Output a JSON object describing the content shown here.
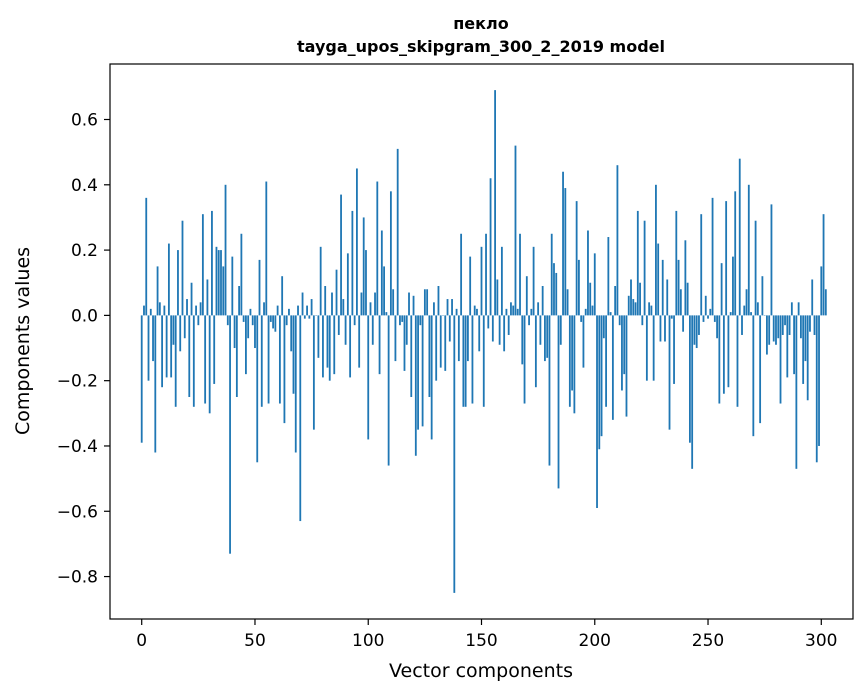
{
  "chart_data": {
    "type": "bar",
    "title": "пекло",
    "subtitle": "tayga_upos_skipgram_300_2_2019 model",
    "xlabel": "Vector components",
    "ylabel": "Components values",
    "xlim": [
      -14,
      314
    ],
    "ylim": [
      -0.93,
      0.77
    ],
    "xticks": [
      0,
      50,
      100,
      150,
      200,
      250,
      300
    ],
    "yticks": [
      -0.8,
      -0.6,
      -0.4,
      -0.2,
      0.0,
      0.2,
      0.4,
      0.6
    ],
    "ytick_labels": [
      "−0.8",
      "−0.6",
      "−0.4",
      "−0.2",
      "0.0",
      "0.2",
      "0.4",
      "0.6"
    ],
    "bar_color": "#1f77b4",
    "grid": false,
    "values": [
      -0.39,
      0.03,
      0.36,
      -0.2,
      0.02,
      -0.14,
      -0.42,
      0.15,
      0.04,
      -0.22,
      0.03,
      -0.19,
      0.22,
      -0.19,
      -0.09,
      -0.28,
      0.2,
      -0.11,
      0.29,
      -0.07,
      0.05,
      -0.25,
      0.1,
      -0.28,
      0.03,
      -0.03,
      0.04,
      0.31,
      -0.27,
      0.11,
      -0.3,
      0.32,
      -0.21,
      0.21,
      0.2,
      0.2,
      0.15,
      0.4,
      -0.03,
      -0.73,
      0.18,
      -0.1,
      -0.25,
      0.09,
      0.25,
      -0.02,
      -0.18,
      -0.07,
      0.02,
      -0.03,
      -0.1,
      -0.45,
      0.17,
      -0.28,
      0.04,
      0.41,
      -0.27,
      -0.02,
      -0.04,
      -0.05,
      0.03,
      -0.27,
      0.12,
      -0.33,
      -0.03,
      0.02,
      -0.11,
      -0.24,
      -0.42,
      0.03,
      -0.63,
      0.07,
      -0.01,
      0.03,
      -0.01,
      0.05,
      -0.35,
      0.0,
      -0.13,
      0.21,
      -0.19,
      0.09,
      -0.16,
      -0.2,
      0.07,
      -0.18,
      0.14,
      -0.06,
      0.37,
      0.05,
      -0.09,
      0.19,
      -0.19,
      0.32,
      -0.03,
      0.45,
      -0.16,
      0.07,
      0.3,
      0.2,
      -0.38,
      0.04,
      -0.09,
      0.07,
      0.41,
      -0.18,
      0.26,
      0.15,
      0.01,
      -0.46,
      0.38,
      0.08,
      -0.14,
      0.51,
      -0.03,
      -0.02,
      -0.17,
      -0.09,
      0.07,
      -0.25,
      0.06,
      -0.43,
      -0.35,
      -0.03,
      -0.34,
      0.08,
      0.08,
      -0.25,
      -0.38,
      0.04,
      -0.2,
      0.09,
      -0.16,
      0.0,
      -0.17,
      0.05,
      -0.08,
      0.05,
      -0.85,
      0.02,
      -0.14,
      0.25,
      -0.28,
      -0.28,
      -0.14,
      0.18,
      -0.27,
      0.03,
      0.02,
      -0.11,
      0.21,
      -0.28,
      0.25,
      -0.04,
      0.42,
      -0.08,
      0.69,
      0.11,
      -0.09,
      0.21,
      -0.11,
      0.02,
      -0.06,
      0.04,
      0.03,
      0.52,
      0.02,
      0.25,
      -0.15,
      -0.27,
      0.12,
      -0.03,
      0.02,
      0.21,
      -0.22,
      0.04,
      -0.09,
      0.09,
      -0.14,
      -0.13,
      -0.46,
      0.25,
      0.16,
      0.13,
      -0.53,
      -0.09,
      0.44,
      0.39,
      0.08,
      -0.28,
      -0.23,
      -0.3,
      0.35,
      0.17,
      -0.02,
      -0.16,
      0.02,
      0.26,
      0.1,
      0.03,
      0.19,
      -0.59,
      -0.41,
      -0.37,
      -0.07,
      -0.28,
      0.24,
      0.01,
      -0.32,
      0.09,
      0.46,
      -0.03,
      -0.23,
      -0.18,
      -0.31,
      0.06,
      0.11,
      0.05,
      0.04,
      0.32,
      0.1,
      -0.03,
      0.29,
      -0.2,
      0.04,
      0.03,
      -0.2,
      0.4,
      0.22,
      -0.08,
      0.17,
      -0.08,
      0.11,
      -0.35,
      -0.01,
      -0.21,
      0.32,
      0.17,
      0.08,
      -0.05,
      0.23,
      0.1,
      -0.39,
      -0.47,
      -0.09,
      -0.1,
      -0.06,
      0.31,
      -0.02,
      0.06,
      -0.01,
      0.02,
      0.36,
      -0.02,
      -0.07,
      -0.27,
      0.16,
      -0.24,
      0.35,
      -0.22,
      0.01,
      0.18,
      0.38,
      -0.28,
      0.48,
      -0.06,
      0.03,
      0.08,
      0.4,
      0.01,
      -0.37,
      0.29,
      0.04,
      -0.33,
      0.12,
      0.0,
      -0.12,
      -0.09,
      0.34,
      -0.08,
      -0.09,
      -0.07,
      -0.27,
      -0.06,
      -0.03,
      -0.19,
      -0.06,
      0.04,
      -0.18,
      -0.47,
      0.04,
      -0.07,
      -0.21,
      -0.14,
      -0.26,
      -0.05,
      0.11,
      -0.06,
      -0.45,
      -0.4,
      0.15,
      0.31,
      0.08
    ]
  }
}
